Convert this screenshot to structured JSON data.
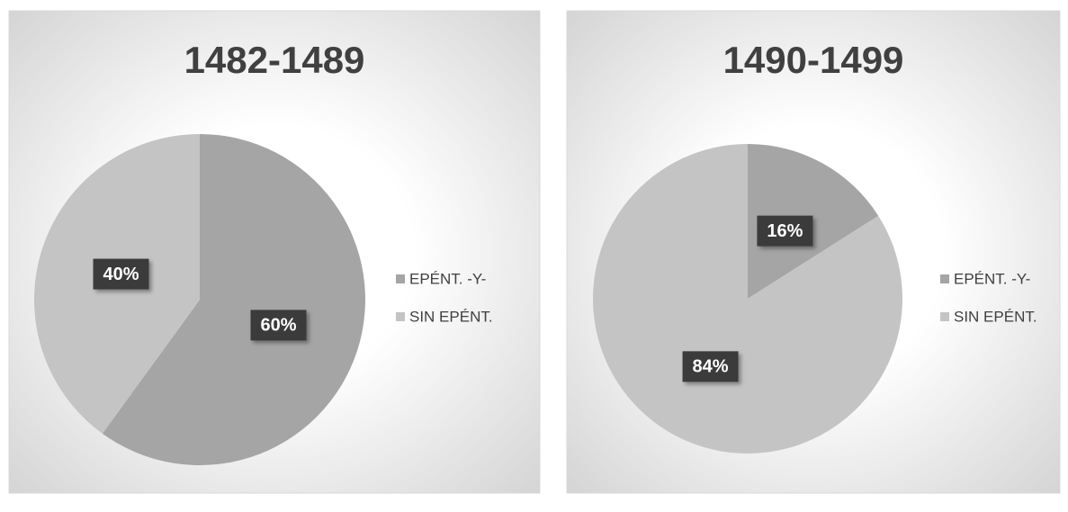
{
  "chart_data": [
    {
      "type": "pie",
      "title": "1482-1489",
      "categories": [
        "EPÉNT. -Y-",
        "SIN EPÉNT."
      ],
      "values": [
        60,
        40
      ],
      "value_labels": [
        "60%",
        "40%"
      ],
      "colors": [
        "#a5a5a5",
        "#c4c4c4"
      ],
      "legend": "right"
    },
    {
      "type": "pie",
      "title": "1490-1499",
      "categories": [
        "EPÉNT. -Y-",
        "SIN EPÉNT."
      ],
      "values": [
        16,
        84
      ],
      "value_labels": [
        "16%",
        "84%"
      ],
      "colors": [
        "#a5a5a5",
        "#c4c4c4"
      ],
      "legend": "right"
    }
  ]
}
